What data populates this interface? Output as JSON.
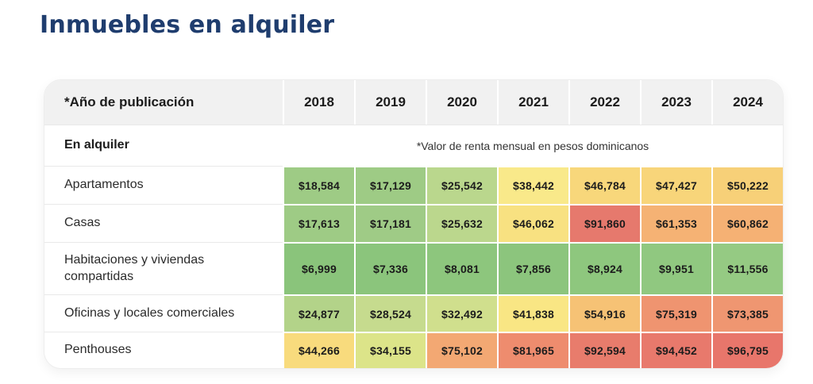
{
  "page": {
    "title": "Inmuebles en alquiler",
    "title_color": "#1f3d6e"
  },
  "table": {
    "corner_label": "*Año de publicación",
    "years": [
      "2018",
      "2019",
      "2020",
      "2021",
      "2022",
      "2023",
      "2024"
    ],
    "group_label": "En alquiler",
    "note": "*Valor de renta mensual en pesos dominicanos",
    "rows": [
      {
        "label": "Apartamentos",
        "cells": [
          {
            "text": "$18,584",
            "color": "#9ecb85"
          },
          {
            "text": "$17,129",
            "color": "#9ecb85"
          },
          {
            "text": "$25,542",
            "color": "#bad78d"
          },
          {
            "text": "$38,442",
            "color": "#f9e98a"
          },
          {
            "text": "$46,784",
            "color": "#f8d77b"
          },
          {
            "text": "$47,427",
            "color": "#f8d57a"
          },
          {
            "text": "$50,222",
            "color": "#f7d078"
          }
        ]
      },
      {
        "label": "Casas",
        "cells": [
          {
            "text": "$17,613",
            "color": "#9ecb85"
          },
          {
            "text": "$17,181",
            "color": "#9fcb86"
          },
          {
            "text": "$25,632",
            "color": "#bbd78d"
          },
          {
            "text": "$46,062",
            "color": "#f8e181"
          },
          {
            "text": "$91,860",
            "color": "#e6796d"
          },
          {
            "text": "$61,353",
            "color": "#f5b274"
          },
          {
            "text": "$60,862",
            "color": "#f5b174"
          }
        ]
      },
      {
        "label": "Habitaciones y viviendas compartidas",
        "cells": [
          {
            "text": "$6,999",
            "color": "#8ac47b"
          },
          {
            "text": "$7,336",
            "color": "#8bc57c"
          },
          {
            "text": "$8,081",
            "color": "#8dc67d"
          },
          {
            "text": "$7,856",
            "color": "#8cc57d"
          },
          {
            "text": "$8,924",
            "color": "#8ec77e"
          },
          {
            "text": "$9,951",
            "color": "#90c880"
          },
          {
            "text": "$11,556",
            "color": "#95ca83"
          }
        ]
      },
      {
        "label": "Oficinas y locales comerciales",
        "cells": [
          {
            "text": "$24,877",
            "color": "#b3d389"
          },
          {
            "text": "$28,524",
            "color": "#c6db8e"
          },
          {
            "text": "$32,492",
            "color": "#d0df8d"
          },
          {
            "text": "$41,838",
            "color": "#f9e684"
          },
          {
            "text": "$54,916",
            "color": "#f6c275"
          },
          {
            "text": "$75,319",
            "color": "#ef9470"
          },
          {
            "text": "$73,385",
            "color": "#ef9671"
          }
        ]
      },
      {
        "label": "Penthouses",
        "cells": [
          {
            "text": "$44,266",
            "color": "#f8db7d"
          },
          {
            "text": "$34,155",
            "color": "#dce489"
          },
          {
            "text": "$75,102",
            "color": "#f3a873"
          },
          {
            "text": "$81,965",
            "color": "#ee8c6e"
          },
          {
            "text": "$92,594",
            "color": "#e87c6c"
          },
          {
            "text": "$94,452",
            "color": "#e8796c"
          },
          {
            "text": "$96,795",
            "color": "#e8766b"
          }
        ]
      }
    ]
  },
  "chart_data": {
    "type": "heatmap",
    "title": "Inmuebles en alquiler",
    "subtitle": "*Valor de renta mensual en pesos dominicanos",
    "row_header": "*Año de publicación",
    "group_label": "En alquiler",
    "columns": [
      "2018",
      "2019",
      "2020",
      "2021",
      "2022",
      "2023",
      "2024"
    ],
    "rows": [
      "Apartamentos",
      "Casas",
      "Habitaciones y viviendas compartidas",
      "Oficinas y locales comerciales",
      "Penthouses"
    ],
    "values": [
      [
        18584,
        17129,
        25542,
        38442,
        46784,
        47427,
        50222
      ],
      [
        17613,
        17181,
        25632,
        46062,
        91860,
        61353,
        60862
      ],
      [
        6999,
        7336,
        8081,
        7856,
        8924,
        9951,
        11556
      ],
      [
        24877,
        28524,
        32492,
        41838,
        54916,
        75319,
        73385
      ],
      [
        44266,
        34155,
        75102,
        81965,
        92594,
        94452,
        96795
      ]
    ],
    "value_unit": "DOP (pesos dominicanos, renta mensual)",
    "colorscale": "green (low) → yellow (mid) → red (high)",
    "colorscale_hex": {
      "low": "#8ac47b",
      "mid": "#f9e98a",
      "high": "#e6796d"
    },
    "value_range": [
      6999,
      96795
    ],
    "legend": "none",
    "grid": "white 2px separators between colored cells"
  }
}
